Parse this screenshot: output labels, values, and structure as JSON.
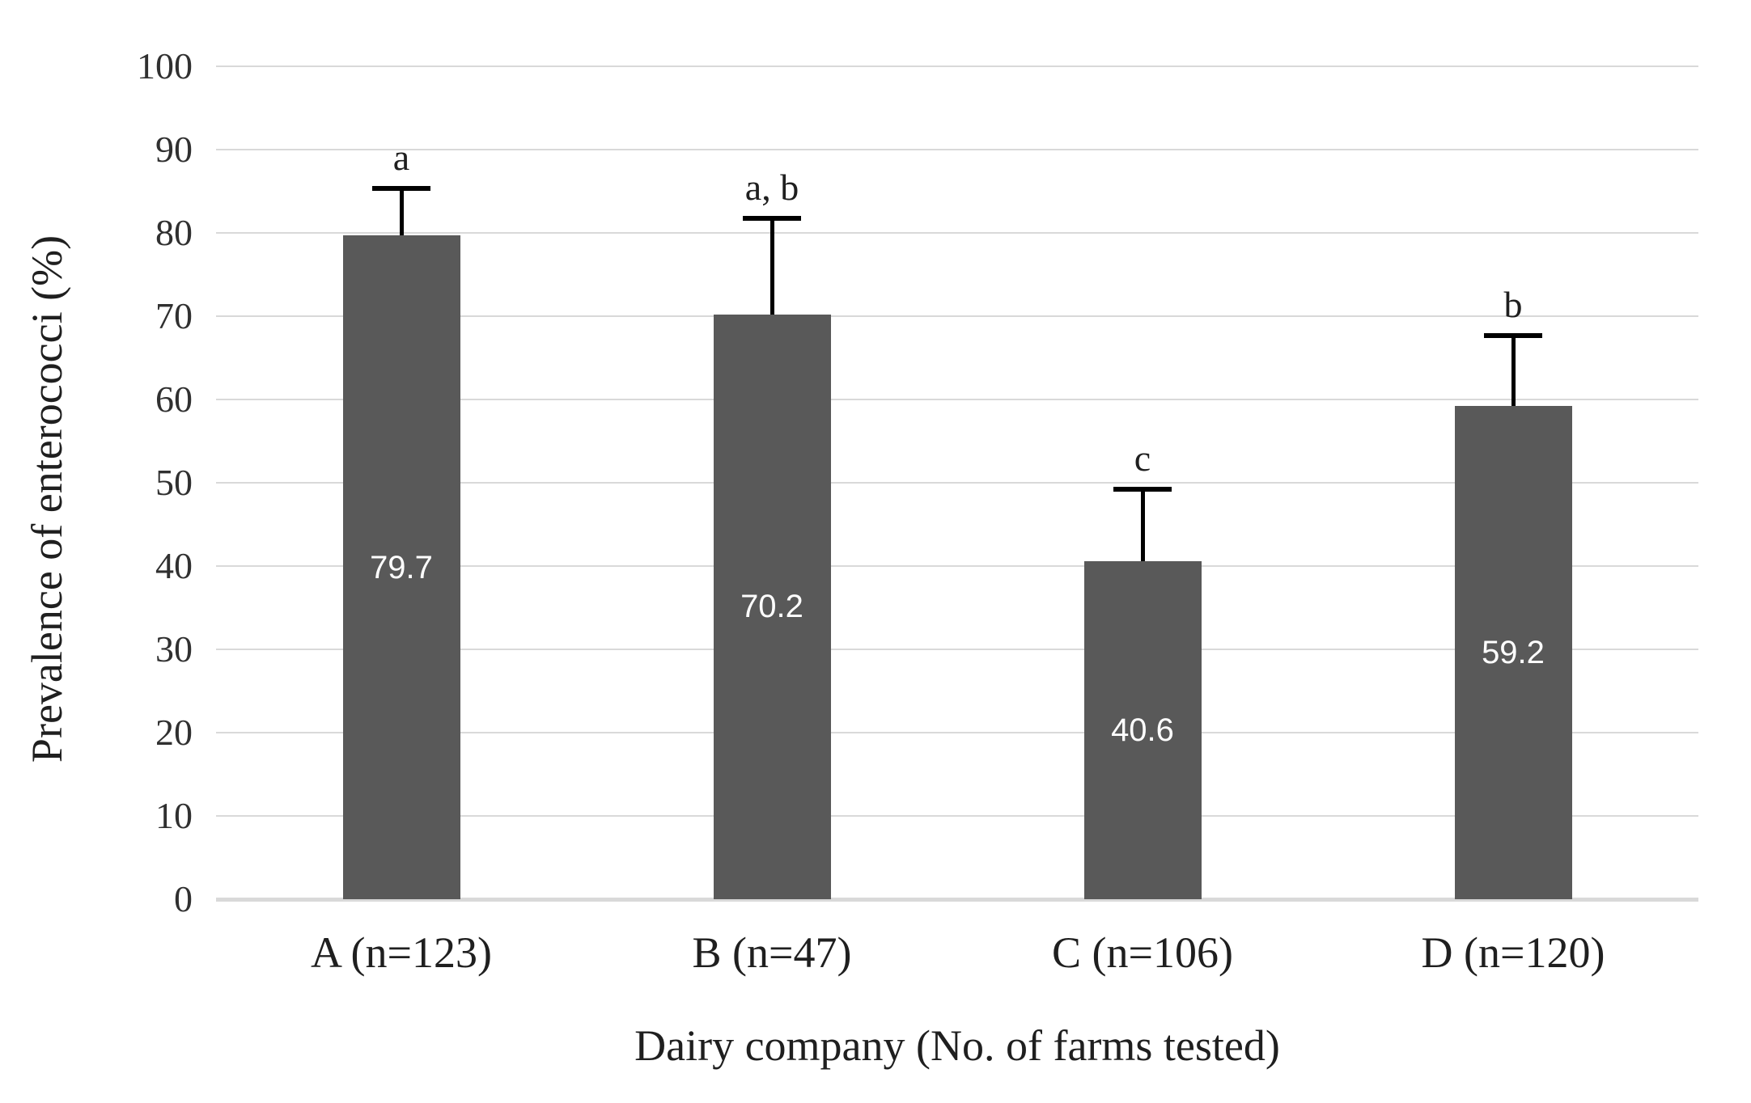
{
  "chart_data": {
    "type": "bar",
    "title": "",
    "xlabel": "Dairy company (No. of farms tested)",
    "ylabel": "Prevalence of enterococci (%)",
    "ylim": [
      0,
      100
    ],
    "yticks": [
      0,
      10,
      20,
      30,
      40,
      50,
      60,
      70,
      80,
      90,
      100
    ],
    "grid": true,
    "legend": "none",
    "categories": [
      "A (n=123)",
      "B (n=47)",
      "C (n=106)",
      "D (n=120)"
    ],
    "values": [
      79.7,
      70.2,
      40.6,
      59.2
    ],
    "value_labels": [
      "79.7",
      "70.2",
      "40.6",
      "59.2"
    ],
    "error_bar_tops": [
      85.3,
      81.7,
      49.2,
      67.7
    ],
    "significance_letters": [
      "a",
      "a, b",
      "c",
      "b"
    ],
    "colors": {
      "bar": "#595959",
      "grid": "#d9d9d9",
      "error_bar": "#000000",
      "value_label": "#ffffff",
      "axis_text": "#1f1f1f"
    }
  }
}
